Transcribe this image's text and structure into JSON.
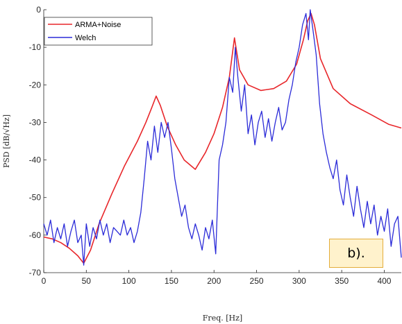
{
  "chart_data": {
    "type": "line",
    "xlabel": "Freq. [Hz]",
    "ylabel": "PSD [dB/√Hz]",
    "xlim": [
      0,
      420
    ],
    "ylim": [
      -70,
      0
    ],
    "x_ticks": [
      0,
      50,
      100,
      150,
      200,
      250,
      300,
      350,
      400
    ],
    "y_ticks": [
      0,
      -10,
      -20,
      -30,
      -40,
      -50,
      -60,
      -70
    ],
    "grid": false,
    "legend_position": "top-left",
    "series": [
      {
        "name": "ARMA+Noise",
        "color": "#e8262a",
        "x": [
          0,
          10,
          20,
          30,
          40,
          47,
          55,
          65,
          80,
          95,
          110,
          120,
          127,
          132,
          137,
          145,
          155,
          165,
          178,
          190,
          200,
          210,
          218,
          224,
          230,
          240,
          255,
          270,
          285,
          297,
          305,
          310,
          314,
          318,
          325,
          340,
          360,
          385,
          405,
          420
        ],
        "y": [
          -60.5,
          -61,
          -62,
          -63.5,
          -65.5,
          -67.5,
          -64,
          -57,
          -49,
          -41.5,
          -35,
          -30,
          -26,
          -23,
          -25.5,
          -31,
          -36,
          -40,
          -42.5,
          -38,
          -33,
          -26,
          -18,
          -7.5,
          -16,
          -20,
          -21.5,
          -21,
          -19,
          -14.5,
          -8,
          -3,
          -1,
          -4,
          -13,
          -21,
          -25,
          -28,
          -30.5,
          -31.5
        ]
      },
      {
        "name": "Welch",
        "color": "#2b2bd8",
        "x": [
          0,
          4,
          8,
          12,
          16,
          20,
          24,
          28,
          32,
          36,
          40,
          44,
          47,
          50,
          54,
          58,
          62,
          66,
          70,
          74,
          78,
          82,
          86,
          90,
          94,
          98,
          102,
          106,
          110,
          114,
          118,
          122,
          126,
          130,
          134,
          138,
          142,
          146,
          150,
          154,
          158,
          162,
          166,
          170,
          174,
          178,
          182,
          186,
          190,
          194,
          198,
          202,
          206,
          210,
          214,
          218,
          222,
          225,
          228,
          232,
          236,
          240,
          244,
          248,
          252,
          256,
          260,
          264,
          268,
          272,
          276,
          280,
          284,
          288,
          292,
          296,
          300,
          304,
          308,
          311,
          313,
          316,
          320,
          324,
          328,
          332,
          336,
          340,
          344,
          348,
          352,
          356,
          360,
          364,
          368,
          372,
          376,
          380,
          384,
          388,
          392,
          396,
          400,
          404,
          408,
          412,
          416,
          420
        ],
        "y": [
          -57,
          -60,
          -56,
          -62,
          -58,
          -61,
          -57,
          -63,
          -59,
          -56,
          -62,
          -60,
          -68,
          -57,
          -63,
          -58,
          -61,
          -56,
          -60,
          -57,
          -62,
          -58,
          -59,
          -60,
          -56,
          -60,
          -58,
          -62,
          -59,
          -54,
          -45,
          -35,
          -40,
          -31,
          -38,
          -30,
          -34,
          -30,
          -37,
          -45,
          -50,
          -55,
          -52,
          -58,
          -61,
          -57,
          -60,
          -64,
          -58,
          -61,
          -56,
          -65,
          -40,
          -36,
          -30,
          -18,
          -22,
          -10,
          -18,
          -27,
          -20,
          -33,
          -28,
          -36,
          -30,
          -27,
          -34,
          -29,
          -35,
          -30,
          -26,
          -32,
          -30,
          -24,
          -20,
          -14,
          -10,
          -4,
          -1,
          -8,
          0,
          -5,
          -12,
          -25,
          -33,
          -38,
          -42,
          -45,
          -40,
          -48,
          -52,
          -44,
          -50,
          -55,
          -47,
          -53,
          -58,
          -51,
          -57,
          -52,
          -60,
          -55,
          -59,
          -53,
          -63,
          -57,
          -55,
          -66
        ]
      }
    ]
  },
  "panel_tag": "b)."
}
